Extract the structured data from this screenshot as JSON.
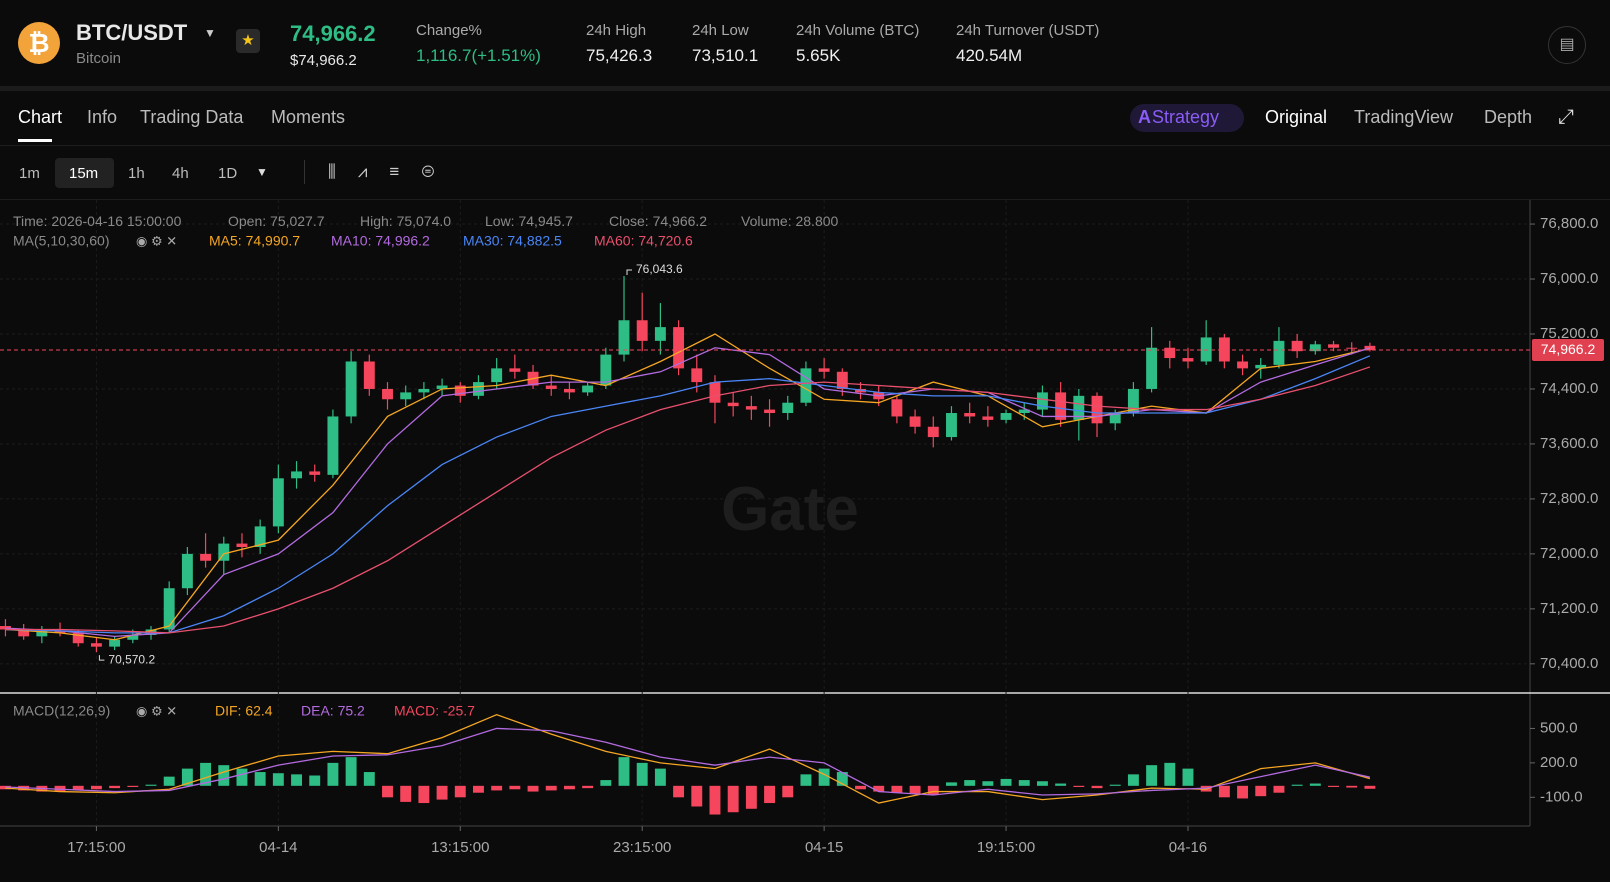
{
  "header": {
    "pair": "BTC/USDT",
    "name": "Bitcoin",
    "price": "74,966.2",
    "price_usd": "$74,966.2",
    "stats": [
      {
        "label": "Change%",
        "value": "1,116.7(+1.51%)"
      },
      {
        "label": "24h High",
        "value": "75,426.3"
      },
      {
        "label": "24h Low",
        "value": "73,510.1"
      },
      {
        "label": "24h Volume (BTC)",
        "value": "5.65K"
      },
      {
        "label": "24h Turnover (USDT)",
        "value": "420.54M"
      }
    ]
  },
  "tabs": [
    "Chart",
    "Info",
    "Trading Data",
    "Moments"
  ],
  "views": [
    "Strategy",
    "Original",
    "TradingView",
    "Depth"
  ],
  "intervals": [
    "1m",
    "15m",
    "1h",
    "4h",
    "1D"
  ],
  "info": [
    "Time: 2026-04-16 15:00:00",
    "Open: 75,027.7",
    "High: 75,074.0",
    "Low: 74,945.7",
    "Close: 74,966.2",
    "Volume: 28.800"
  ],
  "watermark": "Gate",
  "chart_data": [
    {
      "type": "candlestick",
      "indicator": "MA(5,10,30,60)",
      "xlim": [
        -0.3,
        83.8
      ],
      "ylim": [
        69990,
        77150
      ],
      "xticks": [
        {
          "value": 5,
          "label": "17:15:00"
        },
        {
          "value": 15,
          "label": "04-14"
        },
        {
          "value": 25,
          "label": "13:15:00"
        },
        {
          "value": 35,
          "label": "23:15:00"
        },
        {
          "value": 45,
          "label": "04-15"
        },
        {
          "value": 55,
          "label": "19:15:00"
        },
        {
          "value": 65,
          "label": "04-16"
        }
      ],
      "yticks": [
        {
          "value": 76800,
          "label": "76,800.0"
        },
        {
          "value": 76000,
          "label": "76,000.0"
        },
        {
          "value": 75200,
          "label": "75,200.0"
        },
        {
          "value": 74400,
          "label": "74,400.0"
        },
        {
          "value": 73600,
          "label": "73,600.0"
        },
        {
          "value": 72800,
          "label": "72,800.0"
        },
        {
          "value": 72000,
          "label": "72,000.0"
        },
        {
          "value": 71200,
          "label": "71,200.0"
        },
        {
          "value": 70400,
          "label": "70,400.0"
        }
      ],
      "up_color": "#2ebd85",
      "down_color": "#f6465d",
      "open": [
        70950,
        70900,
        70800,
        70880,
        70850,
        70700,
        70650,
        70750,
        70820,
        70900,
        71500,
        72000,
        71900,
        72150,
        72100,
        72400,
        73100,
        73200,
        73150,
        74000,
        74800,
        74400,
        74250,
        74350,
        74400,
        74450,
        74300,
        74500,
        74700,
        74650,
        74450,
        74400,
        74350,
        74450,
        74900,
        75400,
        75100,
        75300,
        74700,
        74500,
        74200,
        74150,
        74100,
        74050,
        74200,
        74700,
        74650,
        74400,
        74350,
        74250,
        74000,
        73850,
        73700,
        74050,
        74000,
        73950,
        74050,
        74100,
        74350,
        73950,
        74300,
        73900,
        74050,
        74400,
        75000,
        74850,
        74800,
        75150,
        74800,
        74700,
        74750,
        75100,
        74950,
        75050,
        75000,
        75027.7
      ],
      "high": [
        71050,
        70980,
        70950,
        71000,
        70900,
        70780,
        70800,
        70900,
        70950,
        71600,
        72100,
        72300,
        72250,
        72300,
        72500,
        73300,
        73350,
        73300,
        74100,
        74950,
        74900,
        74500,
        74450,
        74500,
        74550,
        74500,
        74600,
        74850,
        74900,
        74750,
        74600,
        74500,
        74500,
        75000,
        76043.6,
        75800,
        75650,
        75400,
        74900,
        74600,
        74350,
        74300,
        74250,
        74300,
        74800,
        74850,
        74700,
        74500,
        74450,
        74300,
        74100,
        74000,
        74150,
        74200,
        74150,
        74100,
        74200,
        74450,
        74500,
        74400,
        74350,
        74100,
        74500,
        75300,
        75100,
        75000,
        75400,
        75200,
        74900,
        74850,
        75300,
        75200,
        75100,
        75100,
        75080,
        75074
      ],
      "low": [
        70800,
        70750,
        70700,
        70800,
        70650,
        70570.2,
        70600,
        70700,
        70750,
        70850,
        71400,
        71800,
        71700,
        71950,
        72000,
        72300,
        72950,
        73050,
        73100,
        73900,
        74300,
        74100,
        74150,
        74250,
        74300,
        74200,
        74250,
        74400,
        74550,
        74400,
        74300,
        74250,
        74300,
        74400,
        74800,
        74950,
        74900,
        74600,
        74350,
        73900,
        74000,
        73950,
        73850,
        73950,
        74150,
        74550,
        74300,
        74250,
        74150,
        73900,
        73750,
        73550,
        73650,
        73900,
        73850,
        73900,
        73950,
        74000,
        73850,
        73650,
        73700,
        73800,
        74000,
        74350,
        74700,
        74700,
        74750,
        74700,
        74600,
        74550,
        74700,
        74850,
        74900,
        74950,
        74900,
        74945.7
      ],
      "close": [
        70900,
        70800,
        70880,
        70850,
        70700,
        70650,
        70750,
        70820,
        70900,
        71500,
        72000,
        71900,
        72150,
        72100,
        72400,
        73100,
        73200,
        73150,
        74000,
        74800,
        74400,
        74250,
        74350,
        74400,
        74450,
        74300,
        74500,
        74700,
        74650,
        74450,
        74400,
        74350,
        74450,
        74900,
        75400,
        75100,
        75300,
        74700,
        74500,
        74200,
        74150,
        74100,
        74050,
        74200,
        74700,
        74650,
        74400,
        74350,
        74250,
        74000,
        73850,
        73700,
        74050,
        74000,
        73950,
        74050,
        74100,
        74350,
        73950,
        74300,
        73900,
        74050,
        74400,
        75000,
        74850,
        74800,
        75150,
        74800,
        74700,
        74750,
        75100,
        74950,
        75050,
        75000,
        74990,
        74966.2
      ],
      "max_label": {
        "value": 76043.6,
        "label": "76,043.6"
      },
      "min_label": {
        "value": 70570.2,
        "label": "70,570.2"
      },
      "last_price": {
        "value": 74966.2,
        "label": "74,966.2"
      },
      "series": [
        {
          "name": "MA5: 74,990.7",
          "color": "#f5a623",
          "x": [
            0,
            3,
            6,
            9,
            12,
            15,
            18,
            21,
            24,
            27,
            30,
            33,
            36,
            39,
            42,
            45,
            48,
            51,
            54,
            57,
            60,
            63,
            66,
            69,
            72,
            75
          ],
          "values": [
            70900,
            70850,
            70750,
            70950,
            72000,
            72200,
            73000,
            74000,
            74400,
            74450,
            74600,
            74450,
            74800,
            75200,
            74700,
            74250,
            74200,
            74500,
            74300,
            73850,
            74000,
            74150,
            74050,
            74700,
            74800,
            74990.7
          ]
        },
        {
          "name": "MA10: 74,996.2",
          "color": "#b36be0",
          "x": [
            0,
            3,
            6,
            9,
            12,
            15,
            18,
            21,
            24,
            27,
            30,
            33,
            36,
            39,
            42,
            45,
            48,
            51,
            54,
            57,
            60,
            63,
            66,
            69,
            72,
            75
          ],
          "values": [
            70920,
            70880,
            70800,
            70850,
            71700,
            72000,
            72600,
            73600,
            74300,
            74400,
            74500,
            74500,
            74650,
            75000,
            74900,
            74400,
            74300,
            74400,
            74350,
            74000,
            74000,
            74100,
            74050,
            74500,
            74750,
            74996.2
          ]
        },
        {
          "name": "MA30: 74,882.5",
          "color": "#4a86f7",
          "x": [
            0,
            3,
            6,
            9,
            12,
            15,
            18,
            21,
            24,
            27,
            30,
            33,
            36,
            39,
            42,
            45,
            48,
            51,
            54,
            57,
            60,
            63,
            66,
            69,
            72,
            75
          ],
          "values": [
            70900,
            70880,
            70850,
            70850,
            71100,
            71500,
            72000,
            72700,
            73300,
            73700,
            74000,
            74150,
            74300,
            74500,
            74550,
            74450,
            74350,
            74300,
            74300,
            74150,
            74050,
            74050,
            74050,
            74250,
            74550,
            74882.5
          ]
        },
        {
          "name": "MA60: 74,720.6",
          "color": "#e8506e",
          "x": [
            0,
            3,
            6,
            9,
            12,
            15,
            18,
            21,
            24,
            27,
            30,
            33,
            36,
            39,
            42,
            45,
            48,
            51,
            54,
            57,
            60,
            63,
            66,
            69,
            72,
            75
          ],
          "values": [
            70900,
            70900,
            70880,
            70850,
            70950,
            71200,
            71500,
            71900,
            72400,
            72900,
            73400,
            73800,
            74100,
            74300,
            74450,
            74500,
            74450,
            74400,
            74350,
            74250,
            74150,
            74100,
            74100,
            74250,
            74450,
            74720.6
          ]
        }
      ]
    },
    {
      "type": "macd",
      "indicator": "MACD(12,26,9)",
      "ylim": [
        -350,
        800
      ],
      "yticks": [
        {
          "value": 500,
          "label": "500.0"
        },
        {
          "value": 200,
          "label": "200.0"
        },
        {
          "value": -100,
          "label": "-100.0"
        }
      ],
      "histogram": {
        "name": "MACD: -25.7",
        "up_color": "#2ebd85",
        "down_color": "#f6465d",
        "values": [
          -30,
          -40,
          -50,
          -45,
          -40,
          -30,
          -20,
          -10,
          10,
          80,
          150,
          200,
          180,
          150,
          120,
          110,
          100,
          90,
          200,
          250,
          120,
          -100,
          -140,
          -150,
          -120,
          -100,
          -60,
          -40,
          -30,
          -50,
          -40,
          -30,
          -20,
          50,
          250,
          200,
          150,
          -100,
          -180,
          -250,
          -230,
          -200,
          -150,
          -100,
          100,
          150,
          120,
          -30,
          -50,
          -60,
          -70,
          -80,
          30,
          50,
          40,
          60,
          50,
          40,
          20,
          -10,
          -20,
          10,
          100,
          180,
          200,
          150,
          -50,
          -100,
          -110,
          -90,
          -60,
          10,
          20,
          -10,
          -15,
          -25.7
        ]
      },
      "series": [
        {
          "name": "DIF: 62.4",
          "color": "#f5a623",
          "x": [
            0,
            3,
            6,
            9,
            12,
            15,
            18,
            21,
            24,
            27,
            30,
            33,
            36,
            39,
            42,
            45,
            48,
            51,
            54,
            57,
            60,
            63,
            66,
            69,
            72,
            75
          ],
          "values": [
            -20,
            -50,
            -60,
            -30,
            120,
            260,
            300,
            280,
            420,
            620,
            450,
            300,
            200,
            150,
            320,
            100,
            -150,
            -50,
            -50,
            -120,
            -80,
            -20,
            -30,
            150,
            200,
            62.4
          ]
        },
        {
          "name": "DEA: 75.2",
          "color": "#b36be0",
          "x": [
            0,
            3,
            6,
            9,
            12,
            15,
            18,
            21,
            24,
            27,
            30,
            33,
            36,
            39,
            42,
            45,
            48,
            51,
            54,
            57,
            60,
            63,
            66,
            69,
            72,
            75
          ],
          "values": [
            -10,
            -30,
            -50,
            -40,
            60,
            180,
            260,
            270,
            350,
            500,
            480,
            380,
            250,
            180,
            250,
            200,
            -50,
            -80,
            -30,
            -80,
            -70,
            -40,
            -20,
            80,
            180,
            75.2
          ]
        }
      ]
    }
  ]
}
